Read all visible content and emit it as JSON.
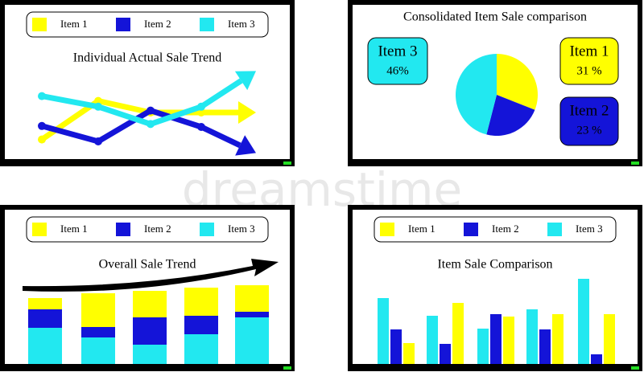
{
  "chart_data": [
    {
      "type": "line",
      "title": "Individual Actual Sale Trend",
      "categories": [
        null,
        null,
        null,
        null,
        null
      ],
      "series": [
        {
          "name": "Item 1",
          "color": "#ffff00",
          "values": [
            22,
            62,
            50,
            50,
            50
          ]
        },
        {
          "name": "Item 2",
          "color": "#1414d8",
          "values": [
            36,
            20,
            52,
            35,
            8
          ]
        },
        {
          "name": "Item 3",
          "color": "#22e8f0",
          "values": [
            67,
            56,
            38,
            56,
            93
          ]
        }
      ],
      "ylim": [
        0,
        100
      ],
      "legend": "top"
    },
    {
      "type": "pie",
      "title": "Consolidated Item Sale comparison",
      "categories": [
        "Item 1",
        "Item 2",
        "Item 3"
      ],
      "values": [
        31,
        23,
        46
      ],
      "value_labels": [
        "31 %",
        "23 %",
        "46%"
      ],
      "colors": [
        "#ffff00",
        "#1414d8",
        "#22e8f0"
      ]
    },
    {
      "type": "stacked-bar",
      "title": "Overall Sale Trend",
      "categories": [
        null,
        null,
        null,
        null,
        null
      ],
      "series": [
        {
          "name": "Item 1",
          "color": "#ffff00",
          "values": [
            14,
            42,
            33,
            35,
            33
          ]
        },
        {
          "name": "Item 2",
          "color": "#1414d8",
          "values": [
            23,
            13,
            34,
            23,
            7
          ]
        },
        {
          "name": "Item 3",
          "color": "#22e8f0",
          "values": [
            45,
            33,
            24,
            37,
            58
          ]
        }
      ],
      "ylim": [
        0,
        100
      ],
      "legend": "top"
    },
    {
      "type": "grouped-bar",
      "title": "Item Sale Comparison",
      "categories": [
        null,
        null,
        null,
        null,
        null
      ],
      "series": [
        {
          "name": "Item 1",
          "color": "#ffff00",
          "values": [
            26,
            76,
            59,
            62,
            62
          ]
        },
        {
          "name": "Item 2",
          "color": "#1414d8",
          "values": [
            43,
            25,
            62,
            43,
            12
          ]
        },
        {
          "name": "Item 3",
          "color": "#22e8f0",
          "values": [
            82,
            60,
            44,
            68,
            106
          ]
        }
      ],
      "ylim": [
        0,
        110
      ],
      "legend": "top"
    }
  ],
  "watermark": "dreamstime"
}
